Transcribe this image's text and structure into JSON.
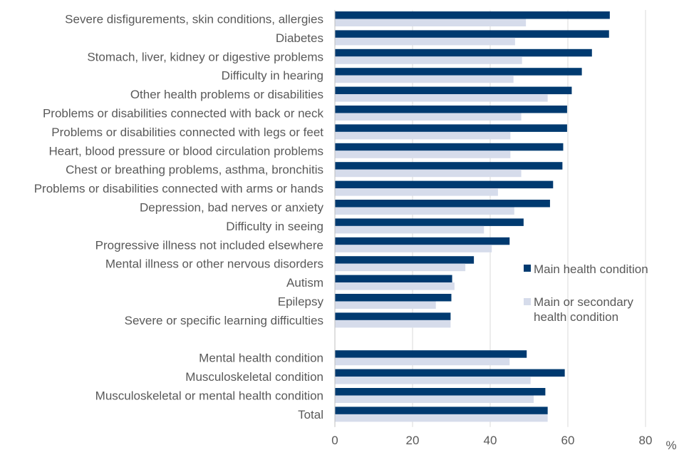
{
  "chart_data": {
    "type": "bar",
    "orientation": "horizontal",
    "categories": [
      "Severe disfigurements, skin conditions, allergies",
      "Diabetes",
      "Stomach, liver, kidney or digestive problems",
      "Difficulty in hearing",
      "Other health problems or disabilities",
      "Problems or disabilities connected with back or neck",
      "Problems or disabilities connected with legs or feet",
      "Heart, blood pressure or blood circulation problems",
      "Chest or breathing problems, asthma, bronchitis",
      "Problems or disabilities connected with arms or hands",
      "Depression, bad nerves or anxiety",
      "Difficulty in seeing",
      "Progressive illness not included elsewhere",
      "Mental illness or other nervous disorders",
      "Autism",
      "Epilepsy",
      "Severe or specific learning difficulties",
      "",
      "Mental health condition",
      "Musculoskeletal condition",
      "Musculoskeletal or mental health condition",
      "Total"
    ],
    "series": [
      {
        "name": "Main health condition",
        "color": "#003A70",
        "values": [
          70.8,
          70.6,
          66.2,
          63.6,
          61.0,
          59.8,
          59.8,
          58.8,
          58.6,
          56.2,
          55.4,
          48.6,
          45.0,
          35.8,
          30.2,
          30.0,
          29.8,
          null,
          49.4,
          59.2,
          54.2,
          54.8
        ]
      },
      {
        "name": "Main or secondary health condition",
        "color": "#D6DCEB",
        "values": [
          49.2,
          46.4,
          48.2,
          46.0,
          54.8,
          48.0,
          45.2,
          45.2,
          48.0,
          42.0,
          46.2,
          38.4,
          40.4,
          33.6,
          30.8,
          26.0,
          29.8,
          null,
          45.0,
          50.4,
          51.2,
          54.8
        ]
      }
    ],
    "xlim": [
      0,
      80
    ],
    "xticks": [
      "0",
      "20",
      "40",
      "60",
      "80"
    ],
    "xunit": "%",
    "grid": true,
    "legend_position": "right"
  }
}
